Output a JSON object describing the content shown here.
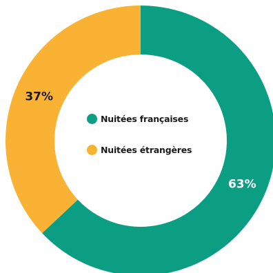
{
  "chart_data": {
    "type": "pie",
    "donut": true,
    "legend_position": "center",
    "slices": [
      {
        "name": "Nuitées françaises",
        "value": 63,
        "label": "63%",
        "color": "#0c9e82",
        "label_color": "#ffffff"
      },
      {
        "name": "Nuitées étrangères",
        "value": 37,
        "label": "37%",
        "color": "#f9b233",
        "label_color": "#1a1a1a"
      }
    ]
  }
}
